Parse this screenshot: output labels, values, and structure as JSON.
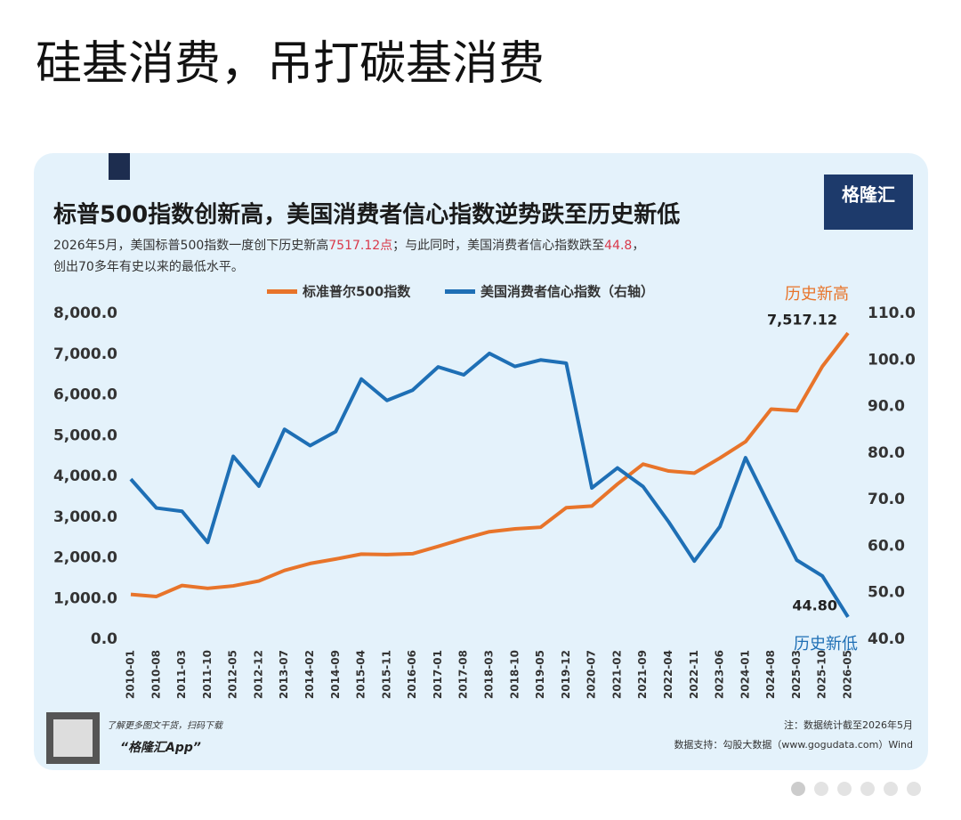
{
  "post": {
    "title": "硅基消费，吊打碳基消费"
  },
  "chart_data": {
    "type": "line",
    "title": "标普500指数创新高，美国消费者信心指数逆势跌至历史新低",
    "subtitle": [
      "2026年5月，美国标普500指数一度创下历史新高",
      "7517.12点",
      "；与此同时，美国消费者信心指数跌至",
      "44.8",
      "，",
      "创出70多年有史以来的最低水平。"
    ],
    "logo": "格隆汇",
    "x": [
      "2010-01",
      "2010-08",
      "2011-03",
      "2011-10",
      "2012-05",
      "2012-12",
      "2013-07",
      "2014-02",
      "2014-09",
      "2015-04",
      "2015-11",
      "2016-06",
      "2017-01",
      "2017-08",
      "2018-03",
      "2018-10",
      "2019-05",
      "2019-12",
      "2020-07",
      "2021-02",
      "2021-09",
      "2022-04",
      "2022-11",
      "2023-06",
      "2024-01",
      "2024-08",
      "2025-03",
      "2025-10",
      "2026-05"
    ],
    "series": [
      {
        "name": "标准普尔500指数",
        "color": "#e8742a",
        "axis": "y",
        "values": [
          1100,
          1050,
          1320,
          1250,
          1310,
          1430,
          1690,
          1860,
          1970,
          2090,
          2080,
          2100,
          2280,
          2470,
          2640,
          2710,
          2750,
          3230,
          3270,
          3810,
          4300,
          4130,
          4080,
          4450,
          4850,
          5650,
          5610,
          6700,
          7517.12
        ],
        "value_labels": [
          null,
          null,
          null,
          null,
          null,
          null,
          null,
          null,
          null,
          null,
          null,
          null,
          null,
          null,
          null,
          null,
          null,
          null,
          null,
          null,
          null,
          null,
          null,
          null,
          null,
          null,
          null,
          null,
          "7,517.12"
        ]
      },
      {
        "name": "美国消费者信心指数（右轴）",
        "color": "#1e6fb5",
        "axis": "y2",
        "values": [
          74.4,
          68.2,
          67.5,
          60.8,
          79.3,
          72.9,
          85.1,
          81.6,
          84.6,
          95.9,
          91.3,
          93.5,
          98.5,
          96.8,
          101.4,
          98.6,
          100.0,
          99.3,
          72.5,
          76.8,
          72.8,
          65.2,
          56.8,
          64.2,
          79.0,
          67.9,
          57.0,
          53.6,
          44.8
        ],
        "value_labels": [
          null,
          null,
          null,
          null,
          null,
          null,
          null,
          null,
          null,
          null,
          null,
          null,
          null,
          null,
          null,
          null,
          null,
          null,
          null,
          null,
          null,
          null,
          null,
          null,
          null,
          null,
          null,
          null,
          "44.80"
        ]
      }
    ],
    "annotations": [
      "历史新高",
      "历史新低"
    ],
    "ylim": [
      0,
      8000
    ],
    "yticks": [
      {
        "value": 0,
        "label": "0.0"
      },
      {
        "value": 1000,
        "label": "1,000.0"
      },
      {
        "value": 2000,
        "label": "2,000.0"
      },
      {
        "value": 3000,
        "label": "3,000.0"
      },
      {
        "value": 4000,
        "label": "4,000.0"
      },
      {
        "value": 5000,
        "label": "5,000.0"
      },
      {
        "value": 6000,
        "label": "6,000.0"
      },
      {
        "value": 7000,
        "label": "7,000.0"
      },
      {
        "value": 8000,
        "label": "8,000.0"
      }
    ],
    "y2lim": [
      40,
      110
    ],
    "y2ticks": [
      {
        "value": 40,
        "label": "40.0"
      },
      {
        "value": 50,
        "label": "50.0"
      },
      {
        "value": 60,
        "label": "60.0"
      },
      {
        "value": 70,
        "label": "70.0"
      },
      {
        "value": 80,
        "label": "80.0"
      },
      {
        "value": 90,
        "label": "90.0"
      },
      {
        "value": 100,
        "label": "100.0"
      },
      {
        "value": 110,
        "label": "110.0"
      }
    ],
    "grid": false,
    "footer": {
      "qr_text": "了解更多图文干货，扫码下载",
      "app": "“格隆汇App”",
      "note": "注：数据统计截至2026年5月",
      "source": "数据支持：勾股大数据（www.gogudata.com）Wind"
    }
  }
}
